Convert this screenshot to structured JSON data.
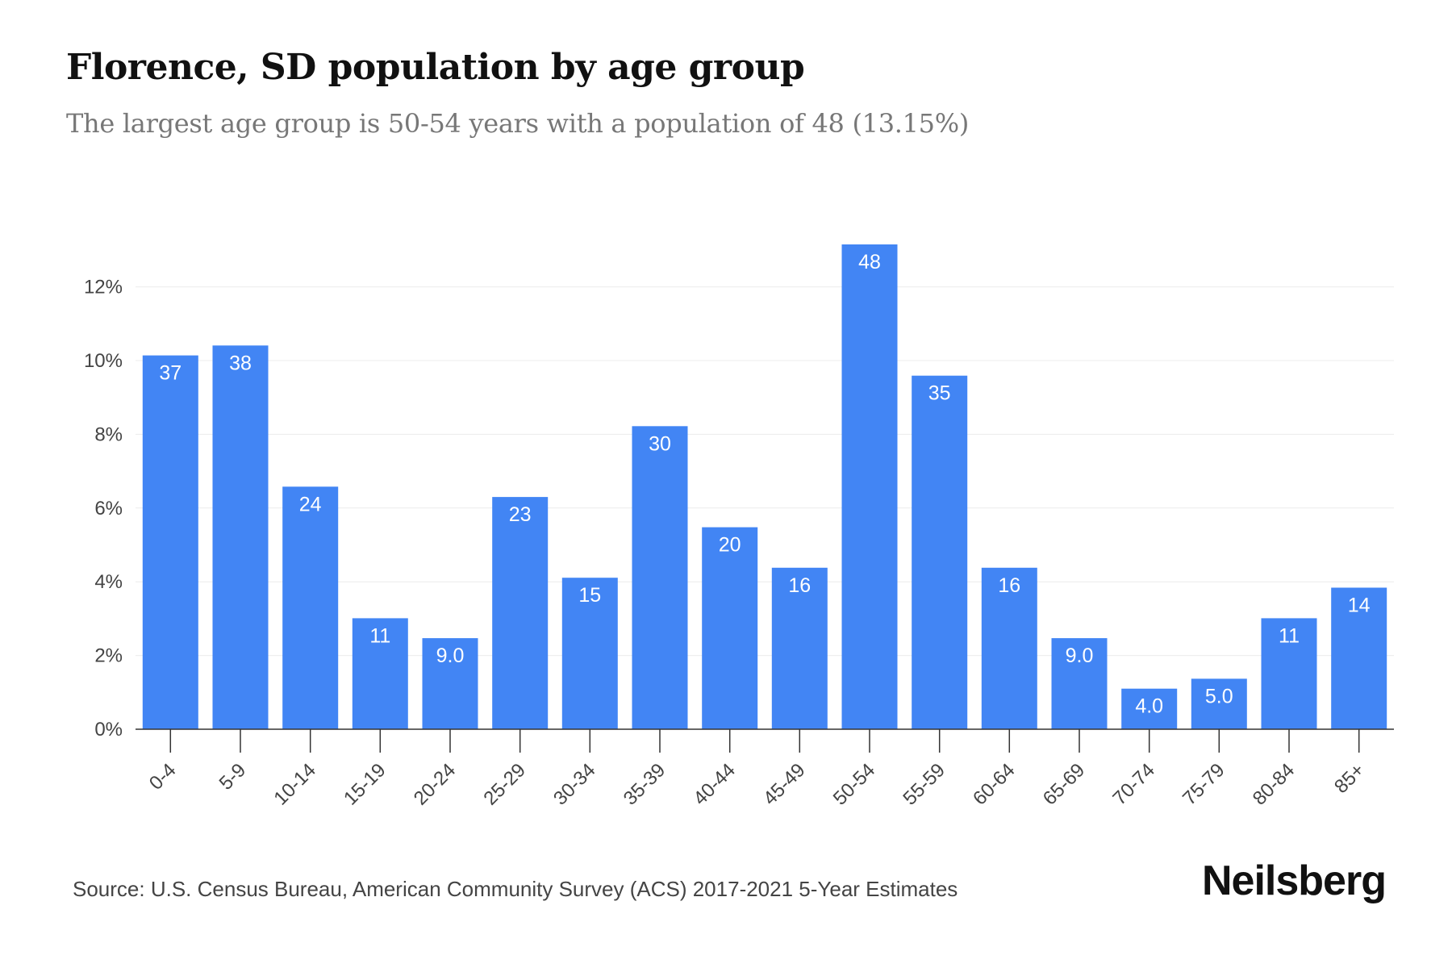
{
  "title": "Florence, SD population by age group",
  "subtitle": "The largest age group is 50-54 years with a population of 48 (13.15%)",
  "source": "Source: U.S. Census Bureau, American Community Survey (ACS) 2017-2021 5-Year Estimates",
  "brand": "Neilsberg",
  "colors": {
    "bar": "#4285f4",
    "label": "#ffffff",
    "axis": "#333333",
    "grid": "#ececec",
    "tick_text": "#444444"
  },
  "chart_data": {
    "type": "bar",
    "title": "Florence, SD population by age group",
    "subtitle": "The largest age group is 50-54 years with a population of 48 (13.15%)",
    "xlabel": "",
    "ylabel": "",
    "categories": [
      "0-4",
      "5-9",
      "10-14",
      "15-19",
      "20-24",
      "25-29",
      "30-34",
      "35-39",
      "40-44",
      "45-49",
      "50-54",
      "55-59",
      "60-64",
      "65-69",
      "70-74",
      "75-79",
      "80-84",
      "85+"
    ],
    "values": [
      10.14,
      10.41,
      6.58,
      3.01,
      2.47,
      6.3,
      4.11,
      8.22,
      5.48,
      4.38,
      13.15,
      9.59,
      4.38,
      2.47,
      1.1,
      1.37,
      3.01,
      3.84
    ],
    "data_labels": [
      "37",
      "38",
      "24",
      "11",
      "9.0",
      "23",
      "15",
      "30",
      "20",
      "16",
      "48",
      "35",
      "16",
      "9.0",
      "4.0",
      "5.0",
      "11",
      "14"
    ],
    "y_ticks": [
      0,
      2,
      4,
      6,
      8,
      10,
      12
    ],
    "y_tick_labels": [
      "0%",
      "2%",
      "4%",
      "6%",
      "8%",
      "10%",
      "12%"
    ],
    "ylim": [
      0,
      13.5
    ],
    "grid": true
  }
}
